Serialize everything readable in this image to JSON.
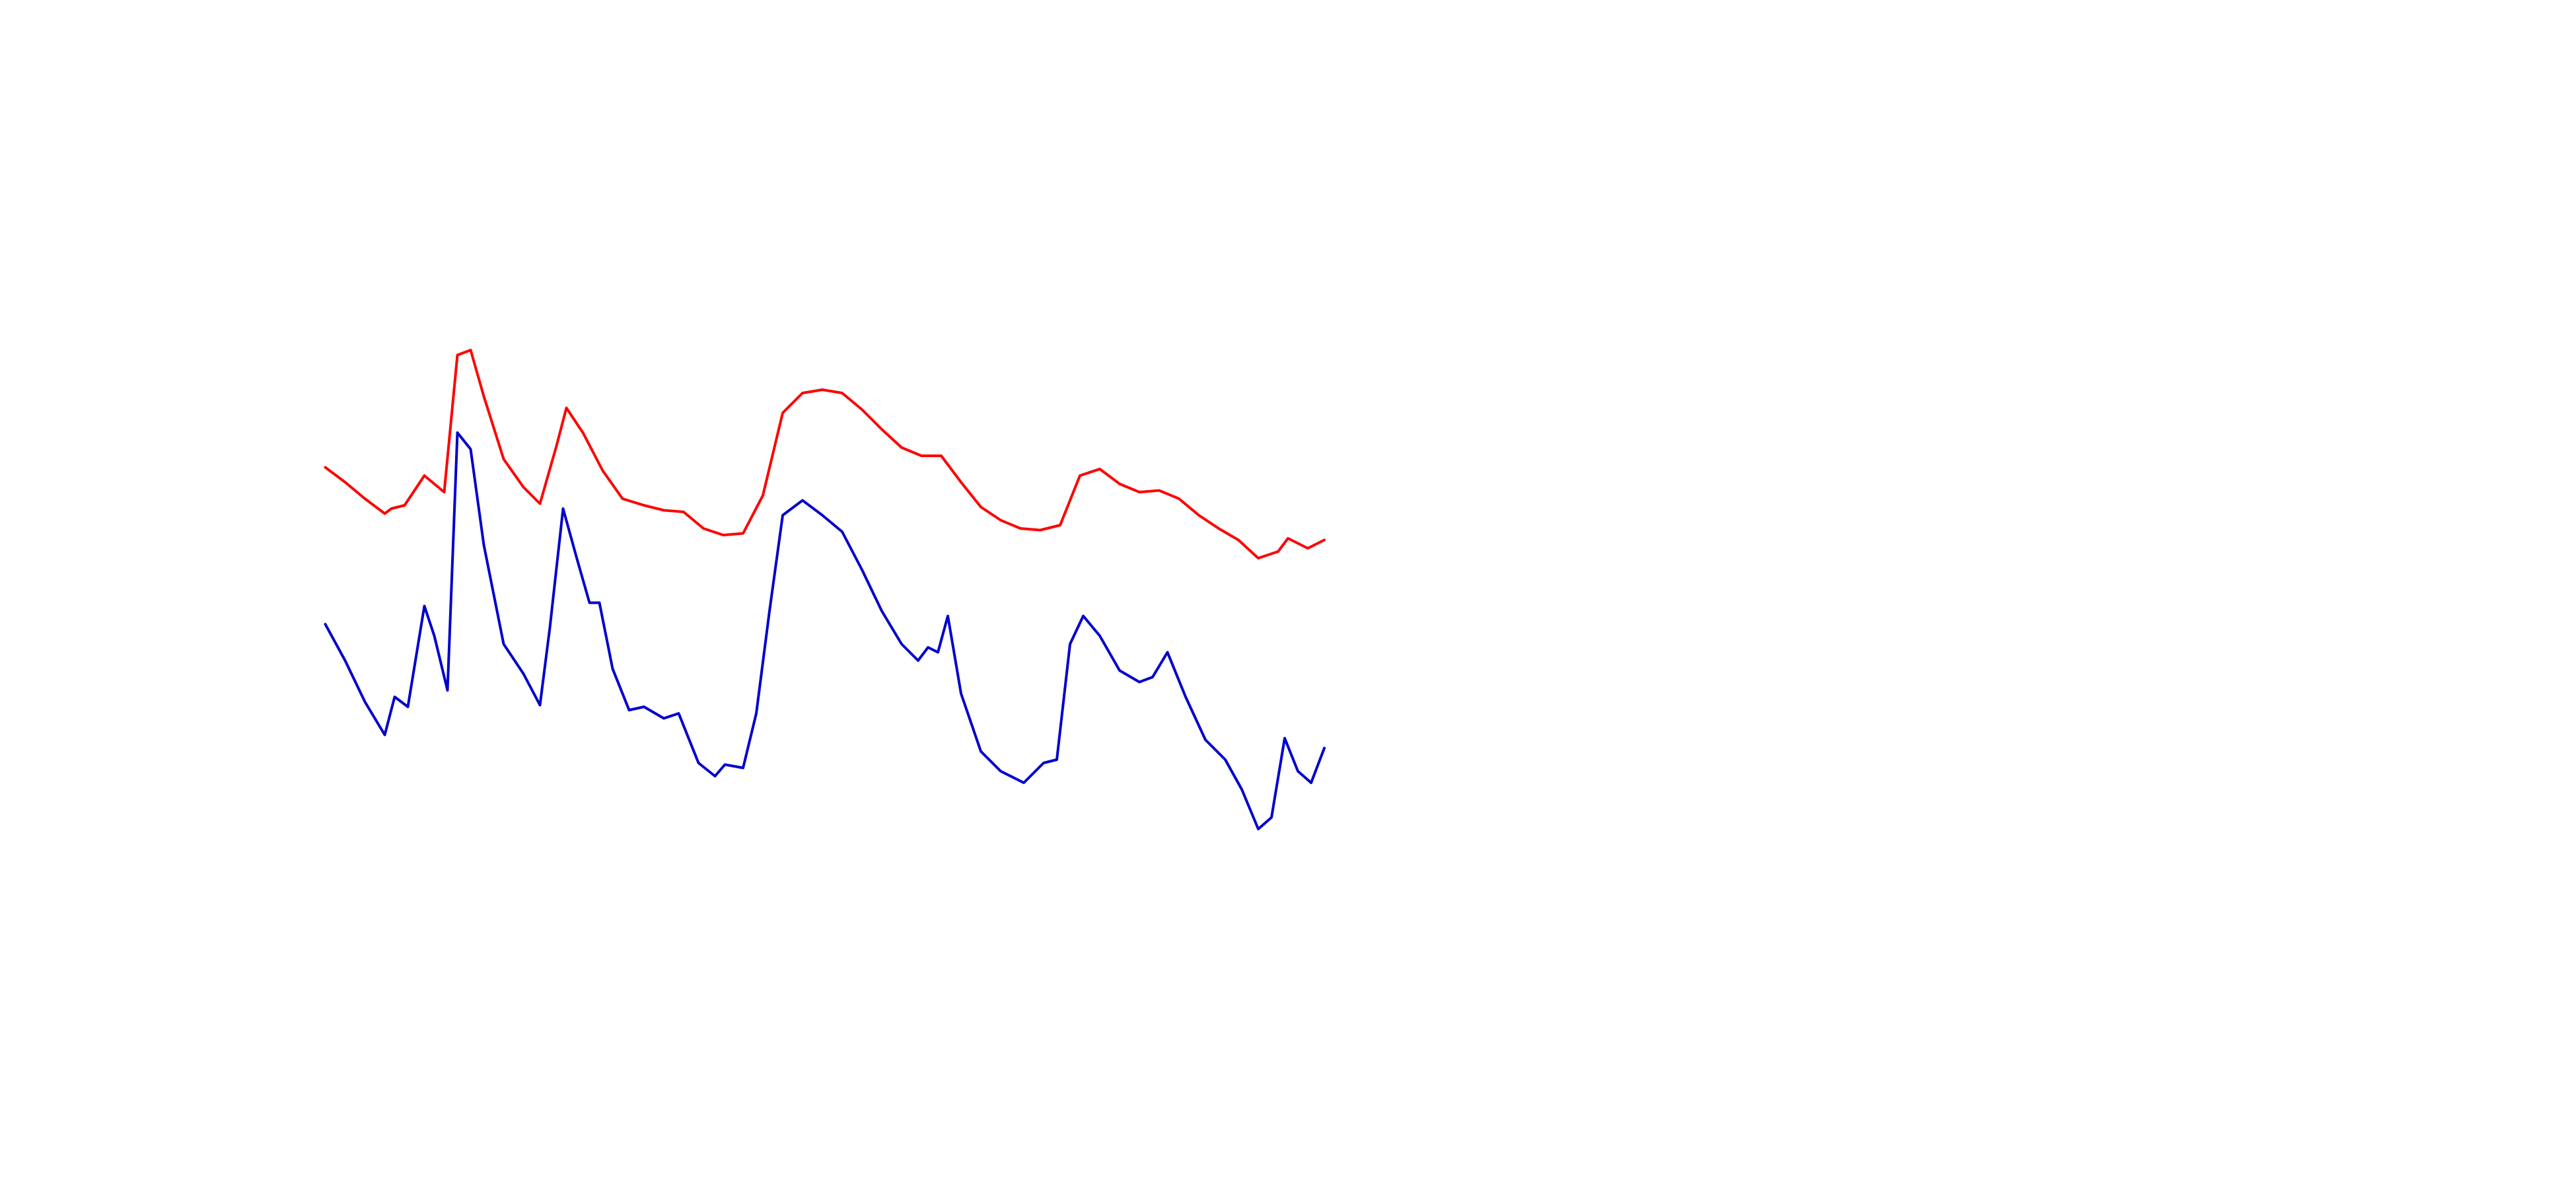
{
  "chart_data": {
    "type": "line",
    "xlim": [
      0,
      605
    ],
    "ylim": [
      0,
      360
    ],
    "series": [
      {
        "name": null,
        "color": "#ff0000",
        "x": [
          0,
          12,
          24,
          36,
          40,
          48,
          60,
          72,
          80,
          88,
          96,
          108,
          120,
          130,
          140,
          146,
          156,
          168,
          180,
          193,
          205,
          217,
          229,
          241,
          253,
          265,
          277,
          289,
          301,
          313,
          325,
          337,
          349,
          361,
          373,
          385,
          397,
          409,
          421,
          433,
          445,
          457,
          469,
          481,
          493,
          505,
          517,
          529,
          541,
          553,
          565,
          577,
          583,
          595,
          605
        ],
        "values": [
          257,
          248,
          238,
          229,
          232,
          234,
          252,
          242,
          325,
          328,
          300,
          262,
          245,
          235,
          270,
          293,
          278,
          255,
          238,
          234,
          231,
          230,
          220,
          216,
          217,
          240,
          290,
          302,
          304,
          302,
          292,
          280,
          269,
          264,
          264,
          248,
          233,
          225,
          220,
          219,
          222,
          252,
          256,
          247,
          242,
          243,
          238,
          228,
          220,
          213,
          202,
          206,
          214,
          208,
          213
        ]
      },
      {
        "name": null,
        "color": "#0000cc",
        "x": [
          0,
          12,
          24,
          36,
          42,
          50,
          60,
          66,
          74,
          80,
          88,
          96,
          108,
          120,
          130,
          136,
          144,
          152,
          160,
          166,
          174,
          184,
          193,
          205,
          214,
          226,
          236,
          242,
          253,
          261,
          269,
          277,
          289,
          301,
          313,
          325,
          337,
          349,
          359,
          365,
          371,
          377,
          385,
          397,
          409,
          423,
          435,
          443,
          451,
          459,
          469,
          481,
          493,
          501,
          510,
          521,
          533,
          545,
          555,
          565,
          573,
          581,
          589,
          597,
          605
        ],
        "values": [
          162,
          140,
          115,
          95,
          118,
          112,
          173,
          155,
          122,
          278,
          268,
          210,
          150,
          132,
          113,
          160,
          232,
          203,
          175,
          175,
          135,
          110,
          112,
          105,
          108,
          78,
          70,
          77,
          75,
          108,
          170,
          228,
          237,
          228,
          218,
          195,
          170,
          150,
          140,
          148,
          145,
          167,
          120,
          85,
          73,
          66,
          78,
          80,
          150,
          167,
          155,
          134,
          127,
          130,
          145,
          118,
          92,
          80,
          62,
          38,
          45,
          93,
          73,
          66,
          87
        ]
      }
    ]
  }
}
